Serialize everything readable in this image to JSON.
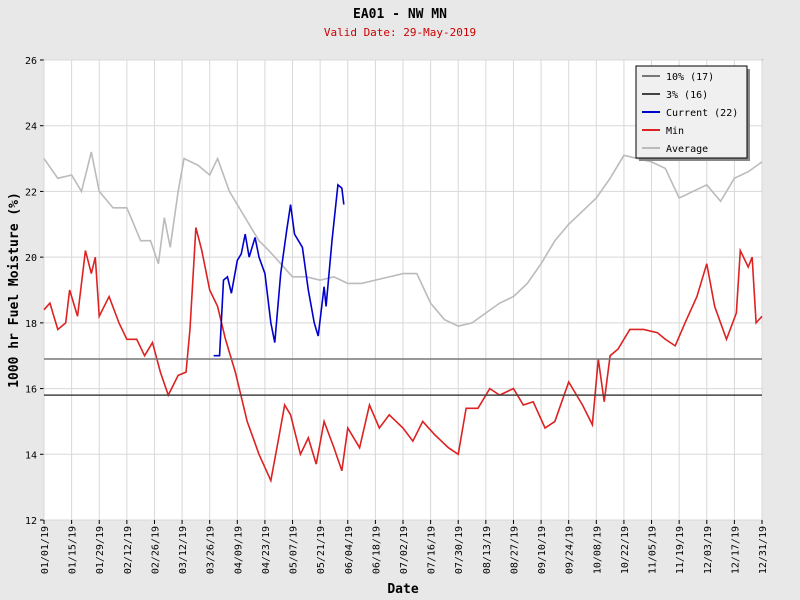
{
  "chart_data": {
    "type": "line",
    "title": "EA01 - NW MN",
    "subtitle": "Valid Date: 29-May-2019",
    "x_label": "Date",
    "y_label": "1000 hr Fuel Moisture (%)",
    "xlim": [
      "01/01/19",
      "12/31/19"
    ],
    "xticks": [
      "01/01/19",
      "01/15/19",
      "01/29/19",
      "02/12/19",
      "02/26/19",
      "03/12/19",
      "03/26/19",
      "04/09/19",
      "04/23/19",
      "05/07/19",
      "05/21/19",
      "06/04/19",
      "06/18/19",
      "07/02/19",
      "07/16/19",
      "07/30/19",
      "08/13/19",
      "08/27/19",
      "09/10/19",
      "09/24/19",
      "10/08/19",
      "10/22/19",
      "11/05/19",
      "11/19/19",
      "12/03/19",
      "12/17/19",
      "12/31/19"
    ],
    "ylim": [
      12,
      26
    ],
    "yticks": [
      12,
      14,
      16,
      18,
      20,
      22,
      24,
      26
    ],
    "grid": true,
    "legend": "upper right",
    "series": [
      {
        "name": "10% (17)",
        "color": "#777777",
        "value": 16.9
      },
      {
        "name": "3% (16)",
        "color": "#444444",
        "value": 15.8
      },
      {
        "name": "Current (22)",
        "color": "#0000cc",
        "x": [
          "03/28/19",
          "03/31/19",
          "04/02/19",
          "04/04/19",
          "04/06/19",
          "04/09/19",
          "04/11/19",
          "04/13/19",
          "04/15/19",
          "04/18/19",
          "04/20/19",
          "04/23/19",
          "04/26/19",
          "04/28/19",
          "05/01/19",
          "05/04/19",
          "05/06/19",
          "05/08/19",
          "05/12/19",
          "05/15/19",
          "05/18/19",
          "05/20/19",
          "05/23/19",
          "05/24/19",
          "05/27/19",
          "05/30/19",
          "06/01/19",
          "06/02/19"
        ],
        "values": [
          17.0,
          17.0,
          19.3,
          19.4,
          18.9,
          19.9,
          20.1,
          20.7,
          20.0,
          20.6,
          20.0,
          19.5,
          18.0,
          17.4,
          19.5,
          20.8,
          21.6,
          20.7,
          20.3,
          19.0,
          18.0,
          17.6,
          19.1,
          18.5,
          20.5,
          22.2,
          22.1,
          21.6
        ]
      },
      {
        "name": "Min",
        "color": "#dd2222",
        "x": [
          "01/01/19",
          "01/04/19",
          "01/08/19",
          "01/12/19",
          "01/14/19",
          "01/18/19",
          "01/22/19",
          "01/25/19",
          "01/27/19",
          "01/29/19",
          "02/03/19",
          "02/08/19",
          "02/12/19",
          "02/17/19",
          "02/21/19",
          "02/25/19",
          "03/01/19",
          "03/05/19",
          "03/10/19",
          "03/14/19",
          "03/16/19",
          "03/19/19",
          "03/22/19",
          "03/26/19",
          "03/30/19",
          "04/03/19",
          "04/08/19",
          "04/14/19",
          "04/20/19",
          "04/26/19",
          "04/30/19",
          "05/03/19",
          "05/06/19",
          "05/11/19",
          "05/15/19",
          "05/19/19",
          "05/23/19",
          "05/28/19",
          "06/01/19",
          "06/04/19",
          "06/10/19",
          "06/15/19",
          "06/20/19",
          "06/25/19",
          "07/02/19",
          "07/07/19",
          "07/12/19",
          "07/18/19",
          "07/25/19",
          "07/30/19",
          "08/03/19",
          "08/09/19",
          "08/15/19",
          "08/20/19",
          "08/27/19",
          "09/01/19",
          "09/06/19",
          "09/12/19",
          "09/17/19",
          "09/24/19",
          "10/01/19",
          "10/06/19",
          "10/09/19",
          "10/12/19",
          "10/15/19",
          "10/19/19",
          "10/25/19",
          "11/01/19",
          "11/08/19",
          "11/12/19",
          "11/17/19",
          "11/22/19",
          "11/28/19",
          "12/03/19",
          "12/07/19",
          "12/13/19",
          "12/18/19",
          "12/20/19",
          "12/24/19",
          "12/26/19",
          "12/28/19",
          "12/31/19"
        ],
        "values": [
          18.4,
          18.6,
          17.8,
          18.0,
          19.0,
          18.2,
          20.2,
          19.5,
          20.0,
          18.2,
          18.8,
          18.0,
          17.5,
          17.5,
          17.0,
          17.4,
          16.5,
          15.8,
          16.4,
          16.5,
          17.8,
          20.9,
          20.2,
          19.0,
          18.5,
          17.5,
          16.5,
          15.0,
          14.0,
          13.2,
          14.5,
          15.5,
          15.2,
          14.0,
          14.5,
          13.7,
          15.0,
          14.2,
          13.5,
          14.8,
          14.2,
          15.5,
          14.8,
          15.2,
          14.8,
          14.4,
          15.0,
          14.6,
          14.2,
          14.0,
          15.4,
          15.4,
          16.0,
          15.8,
          16.0,
          15.5,
          15.6,
          14.8,
          15.0,
          16.2,
          15.5,
          14.9,
          16.9,
          15.6,
          17.0,
          17.2,
          17.8,
          17.8,
          17.7,
          17.5,
          17.3,
          18.0,
          18.8,
          19.8,
          18.5,
          17.5,
          18.3,
          20.2,
          19.7,
          20.0,
          18.0,
          18.2
        ]
      },
      {
        "name": "Average",
        "color": "#bbbbbb",
        "x": [
          "01/01/19",
          "01/08/19",
          "01/15/19",
          "01/20/19",
          "01/25/19",
          "01/29/19",
          "02/05/19",
          "02/12/19",
          "02/19/19",
          "02/24/19",
          "02/28/19",
          "03/03/19",
          "03/06/19",
          "03/10/19",
          "03/13/19",
          "03/20/19",
          "03/26/19",
          "03/30/19",
          "04/05/19",
          "04/10/19",
          "04/15/19",
          "04/20/19",
          "04/25/19",
          "05/01/19",
          "05/07/19",
          "05/14/19",
          "05/21/19",
          "05/28/19",
          "06/04/19",
          "06/11/19",
          "06/18/19",
          "06/25/19",
          "07/02/19",
          "07/09/19",
          "07/16/19",
          "07/23/19",
          "07/30/19",
          "08/06/19",
          "08/13/19",
          "08/20/19",
          "08/27/19",
          "09/03/19",
          "09/10/19",
          "09/17/19",
          "09/24/19",
          "10/01/19",
          "10/08/19",
          "10/15/19",
          "10/22/19",
          "10/29/19",
          "11/05/19",
          "11/12/19",
          "11/19/19",
          "11/26/19",
          "12/03/19",
          "12/10/19",
          "12/17/19",
          "12/24/19",
          "12/31/19"
        ],
        "values": [
          23.0,
          22.4,
          22.5,
          22.0,
          23.2,
          22.0,
          21.5,
          21.5,
          20.5,
          20.5,
          19.8,
          21.2,
          20.3,
          22.0,
          23.0,
          22.8,
          22.5,
          23.0,
          22.0,
          21.5,
          21.0,
          20.5,
          20.2,
          19.8,
          19.4,
          19.4,
          19.3,
          19.4,
          19.2,
          19.2,
          19.3,
          19.4,
          19.5,
          19.5,
          18.6,
          18.1,
          17.9,
          18.0,
          18.3,
          18.6,
          18.8,
          19.2,
          19.8,
          20.5,
          21.0,
          21.4,
          21.8,
          22.4,
          23.1,
          23.0,
          22.9,
          22.7,
          21.8,
          22.0,
          22.2,
          21.7,
          22.4,
          22.6,
          22.9
        ]
      }
    ]
  }
}
